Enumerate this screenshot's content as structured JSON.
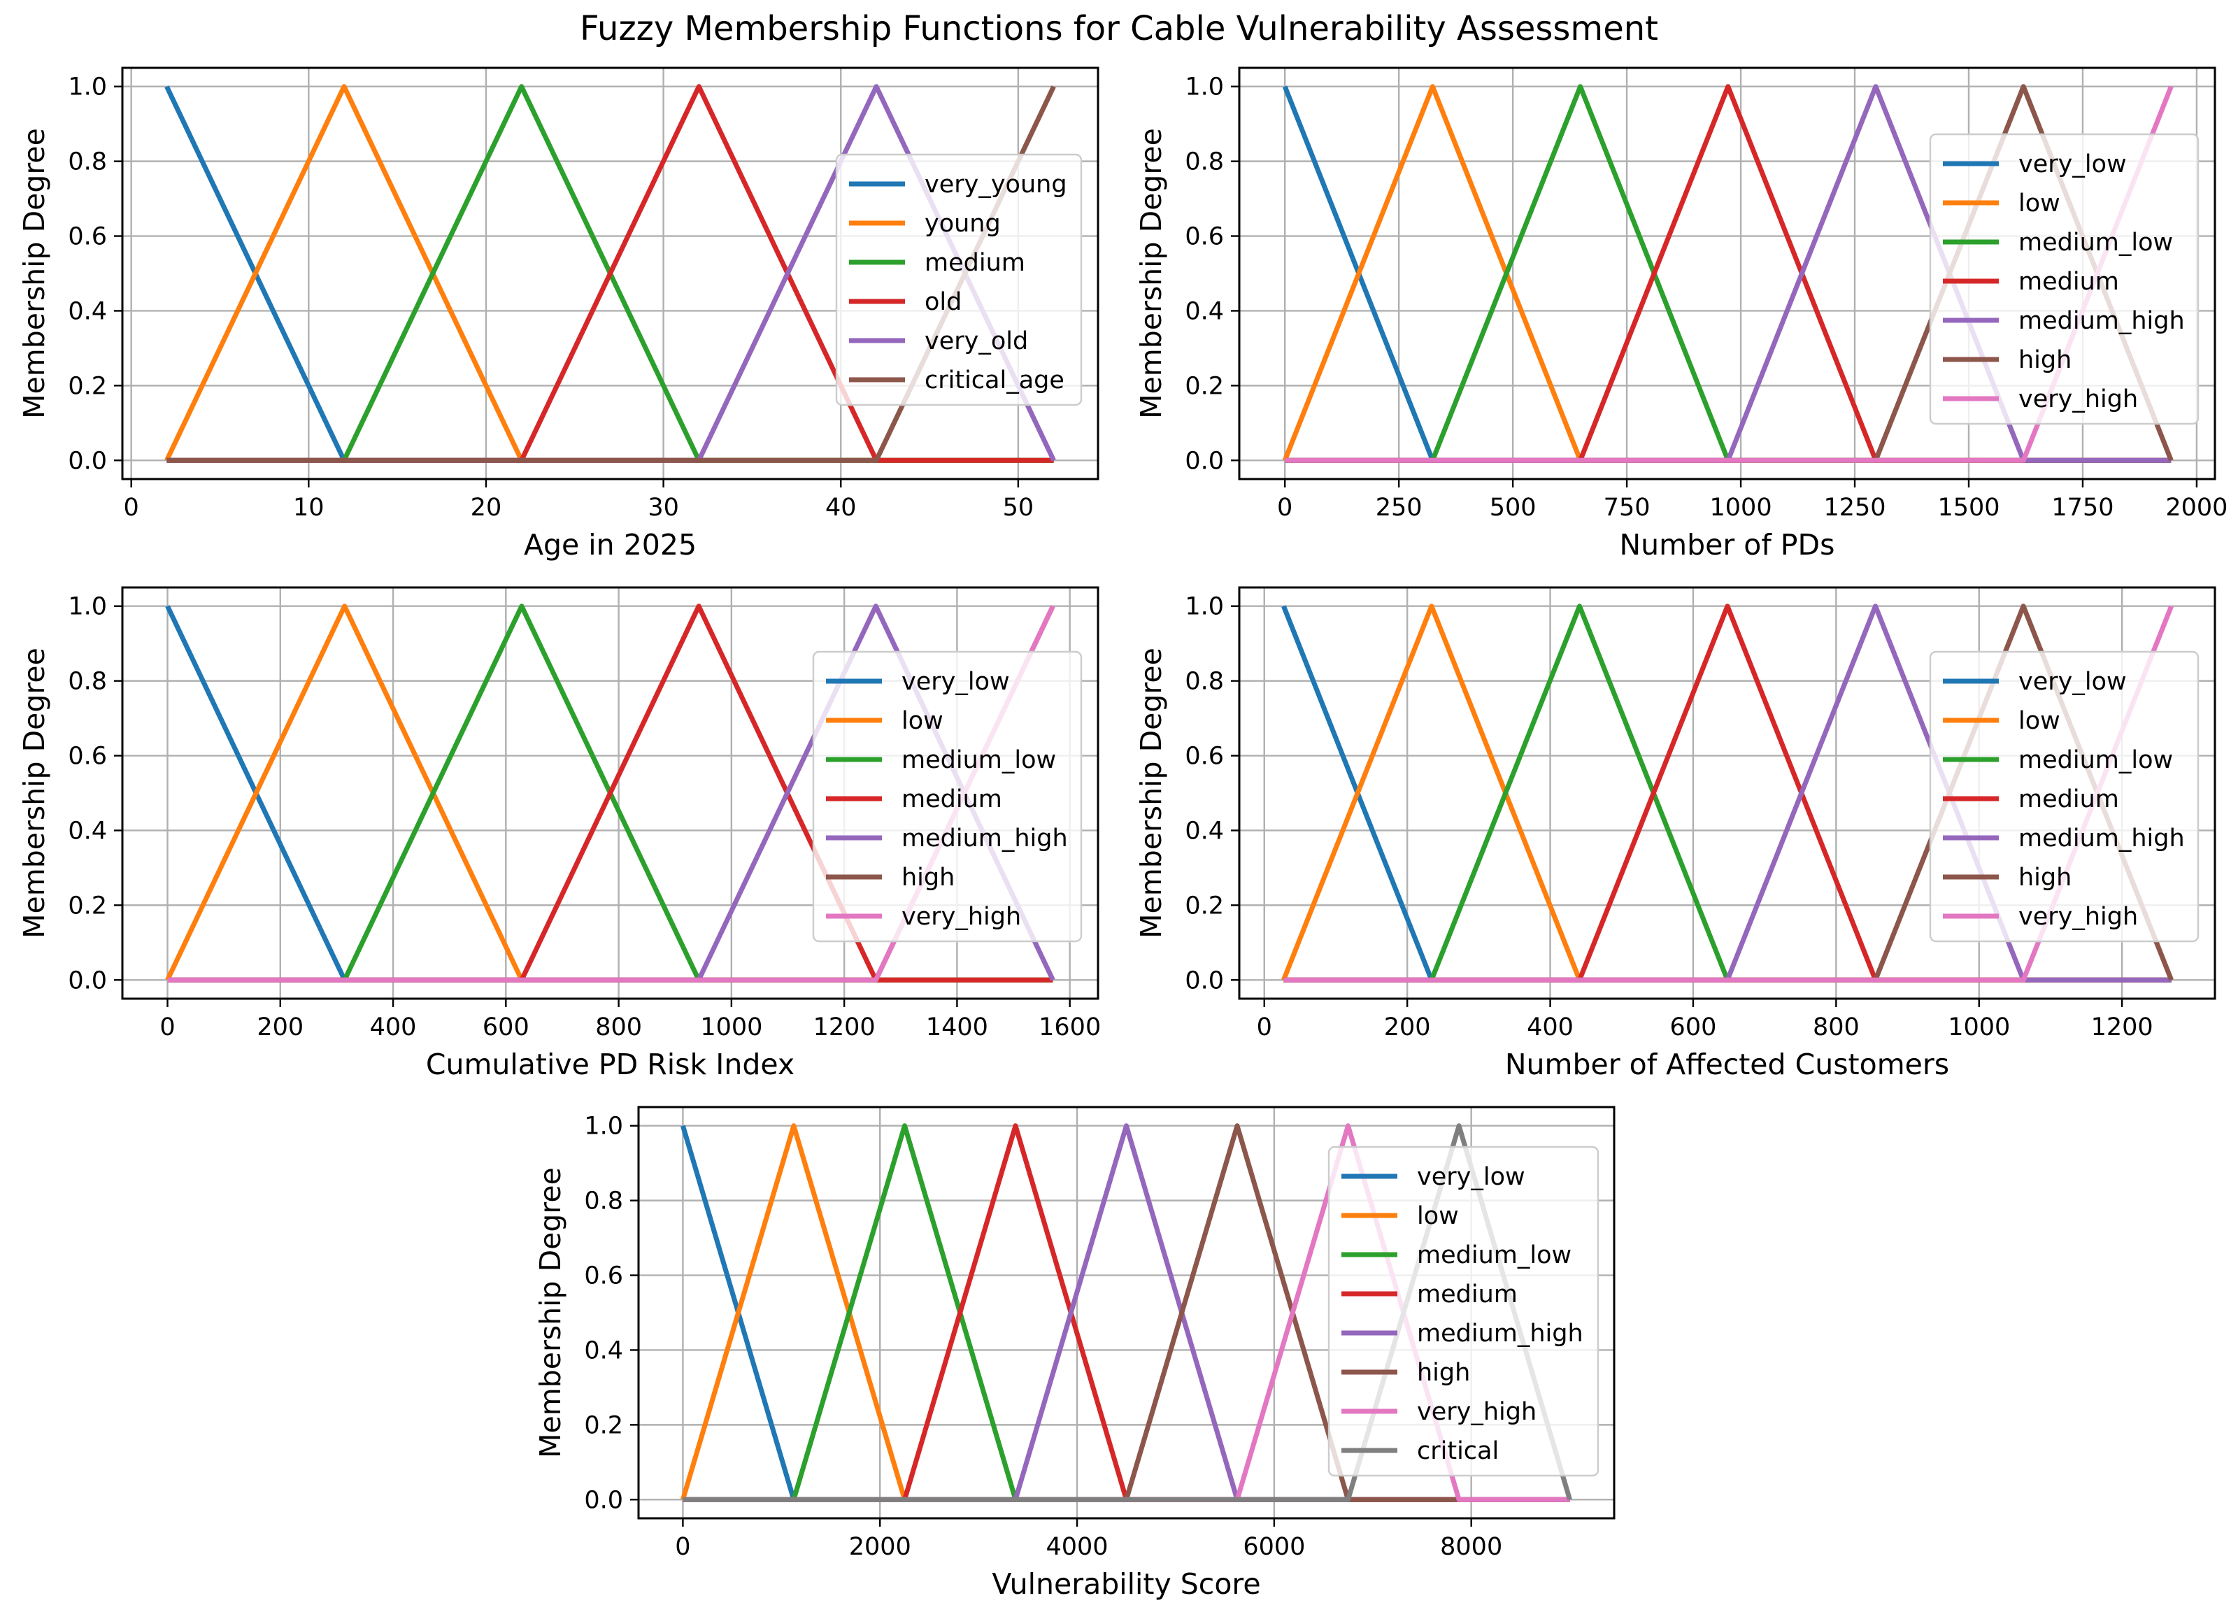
{
  "title": "Fuzzy Membership Functions for Cable Vulnerability Assessment",
  "colors": {
    "blue": "#1f77b4",
    "orange": "#ff7f0e",
    "green": "#2ca02c",
    "red": "#d62728",
    "purple": "#9467bd",
    "brown": "#8c564b",
    "pink": "#e377c2",
    "gray": "#7f7f7f",
    "grid": "#b0b0b0",
    "legend_edge": "#cccccc"
  },
  "chart_data": [
    {
      "type": "line",
      "xlabel": "Age in 2025",
      "ylabel": "Membership Degree",
      "xlim": [
        -0.5,
        54.5
      ],
      "ylim": [
        -0.05,
        1.05
      ],
      "xticks": [
        0,
        10,
        20,
        30,
        40,
        50
      ],
      "xtick_labels": [
        "0",
        "10",
        "20",
        "30",
        "40",
        "50"
      ],
      "yticks": [
        0,
        0.2,
        0.4,
        0.6,
        0.8,
        1.0
      ],
      "ytick_labels": [
        "0.0",
        "0.2",
        "0.4",
        "0.6",
        "0.8",
        "1.0"
      ],
      "grid": true,
      "legend": "right",
      "series": [
        {
          "name": "very_young",
          "color": "#1f77b4",
          "x": [
            2,
            12,
            52
          ],
          "y": [
            1,
            0,
            0
          ]
        },
        {
          "name": "young",
          "color": "#ff7f0e",
          "x": [
            2,
            12,
            22,
            52
          ],
          "y": [
            0,
            1,
            0,
            0
          ]
        },
        {
          "name": "medium",
          "color": "#2ca02c",
          "x": [
            2,
            12,
            22,
            32,
            52
          ],
          "y": [
            0,
            0,
            1,
            0,
            0
          ]
        },
        {
          "name": "old",
          "color": "#d62728",
          "x": [
            2,
            22,
            32,
            42,
            52
          ],
          "y": [
            0,
            0,
            1,
            0,
            0
          ]
        },
        {
          "name": "very_old",
          "color": "#9467bd",
          "x": [
            2,
            32,
            42,
            52
          ],
          "y": [
            0,
            0,
            1,
            0
          ]
        },
        {
          "name": "critical_age",
          "color": "#8c564b",
          "x": [
            2,
            42,
            52
          ],
          "y": [
            0,
            0,
            1
          ]
        }
      ]
    },
    {
      "type": "line",
      "xlabel": "Number of PDs",
      "ylabel": "Membership Degree",
      "xlim": [
        -100,
        2040
      ],
      "ylim": [
        -0.05,
        1.05
      ],
      "xticks": [
        0,
        250,
        500,
        750,
        1000,
        1250,
        1500,
        1750,
        2000
      ],
      "xtick_labels": [
        "0",
        "250",
        "500",
        "750",
        "1000",
        "1250",
        "1500",
        "1750",
        "2000"
      ],
      "yticks": [
        0,
        0.2,
        0.4,
        0.6,
        0.8,
        1.0
      ],
      "ytick_labels": [
        "0.0",
        "0.2",
        "0.4",
        "0.6",
        "0.8",
        "1.0"
      ],
      "grid": true,
      "legend": "right",
      "series": [
        {
          "name": "very_low",
          "color": "#1f77b4",
          "x": [
            0,
            324,
            1944
          ],
          "y": [
            1,
            0,
            0
          ]
        },
        {
          "name": "low",
          "color": "#ff7f0e",
          "x": [
            0,
            324,
            648,
            1944
          ],
          "y": [
            0,
            1,
            0,
            0
          ]
        },
        {
          "name": "medium_low",
          "color": "#2ca02c",
          "x": [
            0,
            324,
            648,
            972,
            1944
          ],
          "y": [
            0,
            0,
            1,
            0,
            0
          ]
        },
        {
          "name": "medium",
          "color": "#d62728",
          "x": [
            0,
            648,
            972,
            1296,
            1944
          ],
          "y": [
            0,
            0,
            1,
            0,
            0
          ]
        },
        {
          "name": "medium_high",
          "color": "#9467bd",
          "x": [
            0,
            972,
            1296,
            1620,
            1944
          ],
          "y": [
            0,
            0,
            1,
            0,
            0
          ]
        },
        {
          "name": "high",
          "color": "#8c564b",
          "x": [
            0,
            1296,
            1620,
            1944
          ],
          "y": [
            0,
            0,
            1,
            0
          ]
        },
        {
          "name": "very_high",
          "color": "#e377c2",
          "x": [
            0,
            1620,
            1944
          ],
          "y": [
            0,
            0,
            1
          ]
        }
      ]
    },
    {
      "type": "line",
      "xlabel": "Cumulative PD Risk Index",
      "ylabel": "Membership Degree",
      "xlim": [
        -80,
        1650
      ],
      "ylim": [
        -0.05,
        1.05
      ],
      "xticks": [
        0,
        200,
        400,
        600,
        800,
        1000,
        1200,
        1400,
        1600
      ],
      "xtick_labels": [
        "0",
        "200",
        "400",
        "600",
        "800",
        "1000",
        "1200",
        "1400",
        "1600"
      ],
      "yticks": [
        0,
        0.2,
        0.4,
        0.6,
        0.8,
        1.0
      ],
      "ytick_labels": [
        "0.0",
        "0.2",
        "0.4",
        "0.6",
        "0.8",
        "1.0"
      ],
      "grid": true,
      "legend": "right",
      "series": [
        {
          "name": "very_low",
          "color": "#1f77b4",
          "x": [
            0,
            314,
            1570
          ],
          "y": [
            1,
            0,
            0
          ]
        },
        {
          "name": "low",
          "color": "#ff7f0e",
          "x": [
            0,
            314,
            628,
            1570
          ],
          "y": [
            0,
            1,
            0,
            0
          ]
        },
        {
          "name": "medium_low",
          "color": "#2ca02c",
          "x": [
            0,
            314,
            628,
            942,
            1570
          ],
          "y": [
            0,
            0,
            1,
            0,
            0
          ]
        },
        {
          "name": "medium",
          "color": "#d62728",
          "x": [
            0,
            628,
            942,
            1256,
            1570
          ],
          "y": [
            0,
            0,
            1,
            0,
            0
          ]
        },
        {
          "name": "medium_high",
          "color": "#9467bd",
          "x": [
            0,
            942,
            1256,
            1570
          ],
          "y": [
            0,
            0,
            1,
            0
          ]
        },
        {
          "name": "high",
          "color": "#8c564b",
          "x": [
            0,
            1256,
            1570
          ],
          "y": [
            0,
            0,
            1
          ]
        },
        {
          "name": "very_high",
          "color": "#e377c2",
          "x": [
            0,
            1256,
            1570
          ],
          "y": [
            0,
            0,
            1
          ]
        }
      ]
    },
    {
      "type": "line",
      "xlabel": "Number of Affected Customers",
      "ylabel": "Membership Degree",
      "xlim": [
        -35,
        1330
      ],
      "ylim": [
        -0.05,
        1.05
      ],
      "xticks": [
        0,
        200,
        400,
        600,
        800,
        1000,
        1200
      ],
      "xtick_labels": [
        "0",
        "200",
        "400",
        "600",
        "800",
        "1000",
        "1200"
      ],
      "yticks": [
        0,
        0.2,
        0.4,
        0.6,
        0.8,
        1.0
      ],
      "ytick_labels": [
        "0.0",
        "0.2",
        "0.4",
        "0.6",
        "0.8",
        "1.0"
      ],
      "grid": true,
      "legend": "right",
      "series": [
        {
          "name": "very_low",
          "color": "#1f77b4",
          "x": [
            27,
            234,
            1269
          ],
          "y": [
            1,
            0,
            0
          ]
        },
        {
          "name": "low",
          "color": "#ff7f0e",
          "x": [
            27,
            234,
            441,
            1269
          ],
          "y": [
            0,
            1,
            0,
            0
          ]
        },
        {
          "name": "medium_low",
          "color": "#2ca02c",
          "x": [
            27,
            234,
            441,
            648,
            1269
          ],
          "y": [
            0,
            0,
            1,
            0,
            0
          ]
        },
        {
          "name": "medium",
          "color": "#d62728",
          "x": [
            27,
            441,
            648,
            855,
            1269
          ],
          "y": [
            0,
            0,
            1,
            0,
            0
          ]
        },
        {
          "name": "medium_high",
          "color": "#9467bd",
          "x": [
            27,
            648,
            855,
            1062,
            1269
          ],
          "y": [
            0,
            0,
            1,
            0,
            0
          ]
        },
        {
          "name": "high",
          "color": "#8c564b",
          "x": [
            27,
            855,
            1062,
            1269
          ],
          "y": [
            0,
            0,
            1,
            0
          ]
        },
        {
          "name": "very_high",
          "color": "#e377c2",
          "x": [
            27,
            1062,
            1269
          ],
          "y": [
            0,
            0,
            1
          ]
        }
      ]
    },
    {
      "type": "line",
      "xlabel": "Vulnerability Score",
      "ylabel": "Membership Degree",
      "xlim": [
        -450,
        9450
      ],
      "ylim": [
        -0.05,
        1.05
      ],
      "xticks": [
        0,
        2000,
        4000,
        6000,
        8000
      ],
      "xtick_labels": [
        "0",
        "2000",
        "4000",
        "6000",
        "8000"
      ],
      "yticks": [
        0,
        0.2,
        0.4,
        0.6,
        0.8,
        1.0
      ],
      "ytick_labels": [
        "0.0",
        "0.2",
        "0.4",
        "0.6",
        "0.8",
        "1.0"
      ],
      "grid": true,
      "legend": "upper right",
      "series": [
        {
          "name": "very_low",
          "color": "#1f77b4",
          "x": [
            0,
            1125,
            9000
          ],
          "y": [
            1,
            0,
            0
          ]
        },
        {
          "name": "low",
          "color": "#ff7f0e",
          "x": [
            0,
            1125,
            2250,
            9000
          ],
          "y": [
            0,
            1,
            0,
            0
          ]
        },
        {
          "name": "medium_low",
          "color": "#2ca02c",
          "x": [
            0,
            1125,
            2250,
            3375,
            9000
          ],
          "y": [
            0,
            0,
            1,
            0,
            0
          ]
        },
        {
          "name": "medium",
          "color": "#d62728",
          "x": [
            0,
            2250,
            3375,
            4500,
            9000
          ],
          "y": [
            0,
            0,
            1,
            0,
            0
          ]
        },
        {
          "name": "medium_high",
          "color": "#9467bd",
          "x": [
            0,
            3375,
            4500,
            5625,
            9000
          ],
          "y": [
            0,
            0,
            1,
            0,
            0
          ]
        },
        {
          "name": "high",
          "color": "#8c564b",
          "x": [
            0,
            4500,
            5625,
            6750,
            7875
          ],
          "y": [
            0,
            0,
            1,
            0,
            0
          ]
        },
        {
          "name": "very_high",
          "color": "#e377c2",
          "x": [
            0,
            5625,
            6750,
            7875,
            9000
          ],
          "y": [
            0,
            0,
            1,
            0,
            0
          ]
        },
        {
          "name": "critical",
          "color": "#7f7f7f",
          "x": [
            0,
            6750,
            7875,
            9000
          ],
          "y": [
            0,
            0,
            1,
            0
          ]
        }
      ]
    }
  ]
}
